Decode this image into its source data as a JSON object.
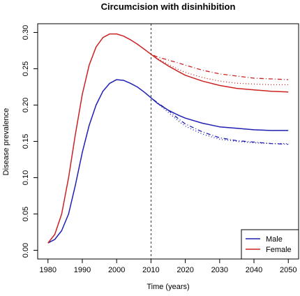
{
  "chart_data": {
    "type": "line",
    "title": "Circumcision with disinhibition",
    "xlabel": "Time (years)",
    "ylabel": "Disease prevalence",
    "xlim": [
      1977,
      2053
    ],
    "ylim": [
      -0.012,
      0.312
    ],
    "xticks": [
      1980,
      1990,
      2000,
      2010,
      2020,
      2030,
      2040,
      2050
    ],
    "yticks": [
      0.0,
      0.05,
      0.1,
      0.15,
      0.2,
      0.25,
      0.3
    ],
    "ytick_labels": [
      "0.00",
      "0.05",
      "0.10",
      "0.15",
      "0.20",
      "0.25",
      "0.30"
    ],
    "vline_x": 2010,
    "legend_position": "bottom-right",
    "legend": [
      {
        "label": "Male",
        "color": "#1f1fb4"
      },
      {
        "label": "Female",
        "color": "#cc2222"
      }
    ],
    "series": [
      {
        "name": "Male",
        "color": "#1f1fb4",
        "dash": "solid",
        "x": [
          1980,
          1982,
          1984,
          1986,
          1988,
          1990,
          1992,
          1994,
          1996,
          1998,
          2000,
          2002,
          2004,
          2006,
          2008,
          2010,
          2012,
          2015,
          2018,
          2020,
          2025,
          2030,
          2035,
          2040,
          2045,
          2050
        ],
        "y": [
          0.01,
          0.015,
          0.027,
          0.05,
          0.09,
          0.135,
          0.172,
          0.2,
          0.219,
          0.23,
          0.235,
          0.234,
          0.23,
          0.225,
          0.218,
          0.21,
          0.202,
          0.193,
          0.186,
          0.182,
          0.175,
          0.17,
          0.168,
          0.166,
          0.165,
          0.165
        ]
      },
      {
        "name": "Female",
        "color": "#cc2222",
        "dash": "solid",
        "x": [
          1980,
          1982,
          1984,
          1986,
          1988,
          1990,
          1992,
          1994,
          1996,
          1998,
          2000,
          2002,
          2004,
          2006,
          2008,
          2010,
          2012,
          2015,
          2018,
          2020,
          2025,
          2030,
          2035,
          2040,
          2045,
          2050
        ],
        "y": [
          0.01,
          0.022,
          0.05,
          0.1,
          0.16,
          0.215,
          0.255,
          0.28,
          0.293,
          0.298,
          0.298,
          0.295,
          0.29,
          0.284,
          0.277,
          0.27,
          0.263,
          0.254,
          0.246,
          0.241,
          0.233,
          0.227,
          0.223,
          0.221,
          0.219,
          0.218
        ]
      },
      {
        "color": "#1f1fb4",
        "dash": "dotdash",
        "x": [
          2010,
          2012,
          2015,
          2018,
          2020,
          2025,
          2030,
          2035,
          2040,
          2045,
          2050
        ],
        "y": [
          0.21,
          0.203,
          0.193,
          0.181,
          0.174,
          0.163,
          0.155,
          0.151,
          0.149,
          0.147,
          0.146
        ]
      },
      {
        "color": "#1f1fb4",
        "dash": "dotted",
        "x": [
          2010,
          2012,
          2015,
          2018,
          2020,
          2025,
          2030,
          2035,
          2040,
          2045,
          2050
        ],
        "y": [
          0.21,
          0.202,
          0.19,
          0.178,
          0.171,
          0.16,
          0.153,
          0.15,
          0.148,
          0.147,
          0.147
        ]
      },
      {
        "color": "#cc2222",
        "dash": "dotdash",
        "x": [
          2010,
          2012,
          2015,
          2018,
          2020,
          2025,
          2030,
          2035,
          2040,
          2045,
          2050
        ],
        "y": [
          0.27,
          0.266,
          0.262,
          0.258,
          0.255,
          0.248,
          0.243,
          0.24,
          0.237,
          0.236,
          0.235
        ]
      },
      {
        "color": "#cc2222",
        "dash": "dotted",
        "x": [
          2010,
          2012,
          2015,
          2018,
          2020,
          2025,
          2030,
          2035,
          2040,
          2045,
          2050
        ],
        "y": [
          0.27,
          0.264,
          0.256,
          0.249,
          0.245,
          0.238,
          0.233,
          0.23,
          0.229,
          0.228,
          0.228
        ]
      }
    ]
  }
}
